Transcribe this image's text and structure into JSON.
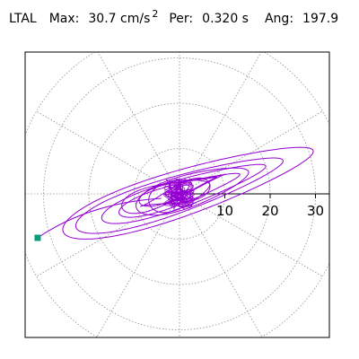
{
  "header": {
    "station": "LTAL",
    "max_label": "Max:",
    "max_value": "30.7 cm/s",
    "max_exp": "2",
    "per_label": "Per:",
    "per_value": "0.320 s",
    "ang_label": "Ang:",
    "ang_value": "197.9"
  },
  "chart_data": {
    "type": "scatter",
    "title": "",
    "xlabel": "",
    "ylabel": "",
    "radial_ticks": [
      "10",
      "20",
      "30"
    ],
    "radial_tick_values": [
      10,
      20,
      30
    ],
    "rings": [
      10,
      20,
      30
    ],
    "max_radius": 30.7,
    "angle_deg": 197.9,
    "spoke_step_deg": 30,
    "grid": true,
    "trace_color": "#9400d3",
    "marker_color": "#0b9b7a",
    "marker_point": {
      "x": -31.3,
      "y": -9.7
    },
    "orbit_cloud": {
      "radius": 3,
      "count": 14
    },
    "orbits": [
      {
        "ax": 29,
        "bx": 0,
        "ay": -10,
        "by": 4,
        "cx": 2,
        "cy": 0
      },
      {
        "ax": 24,
        "bx": 0,
        "ay": -8,
        "by": 3.5,
        "cx": 0,
        "cy": 0
      },
      {
        "ax": 19,
        "bx": 0,
        "ay": -6,
        "by": 3,
        "cx": 1,
        "cy": 0
      },
      {
        "ax": 14,
        "bx": 0,
        "ay": -4.5,
        "by": 3,
        "cx": 0,
        "cy": 0
      },
      {
        "ax": 10,
        "bx": 0,
        "ay": -3,
        "by": 5,
        "cx": 1,
        "cy": 1
      },
      {
        "ax": 8,
        "bx": 0,
        "ay": 3.5,
        "by": 6,
        "cx": -1,
        "cy": 0
      },
      {
        "ax": 7,
        "bx": 0,
        "ay": -6,
        "by": 4,
        "cx": 0,
        "cy": 0
      },
      {
        "ax": 13,
        "bx": 0,
        "ay": -7,
        "by": 3,
        "cx": 3,
        "cy": 0
      },
      {
        "ax": 11,
        "bx": 0,
        "ay": -4,
        "by": 6,
        "cx": -2,
        "cy": 1
      }
    ]
  },
  "colors": {
    "axis": "#000000",
    "grid": "#909090",
    "background": "#ffffff"
  }
}
